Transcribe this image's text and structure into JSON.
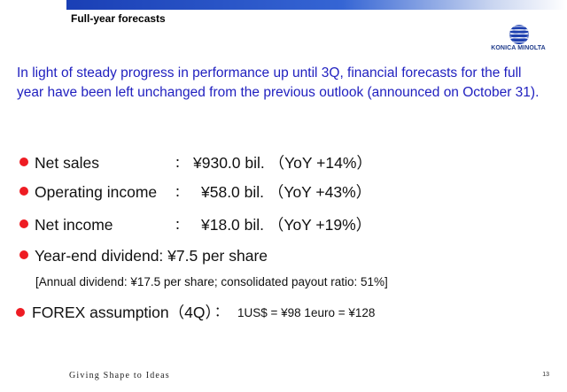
{
  "header": {
    "title": "Full-year forecasts"
  },
  "logo": {
    "text": "KONICA MINOLTA",
    "icon": "konica-minolta-globe-icon",
    "color": "#1e3a8a"
  },
  "intro": {
    "text": "In light of steady progress in performance up until 3Q, financial forecasts for the full year have been left unchanged from the previous outlook (announced on October 31)."
  },
  "bullets": [
    {
      "label": "Net sales",
      "colon": "：",
      "value": "¥930.0 bil. （YoY +14%）"
    },
    {
      "label": "Operating income",
      "colon": "：",
      "value": "¥58.0 bil. （YoY +43%）"
    },
    {
      "label": "Net income",
      "colon": "：",
      "value": "¥18.0 bil. （YoY +19%）"
    },
    {
      "label": "Year-end dividend: ¥7.5 per share"
    }
  ],
  "dividend_note": "[Annual dividend: ¥17.5 per share; consolidated payout ratio: 51%]",
  "forex": {
    "label": "FOREX assumption（4Q）",
    "colon": "：",
    "value": "1US$ = ¥98  1euro = ¥128"
  },
  "footer": {
    "tagline": "Giving Shape to Ideas",
    "page_number": "13"
  },
  "colors": {
    "accent_blue": "#1f1fbf",
    "bullet_red": "#ee1c23",
    "bar_blue": "#1a3fb5"
  }
}
